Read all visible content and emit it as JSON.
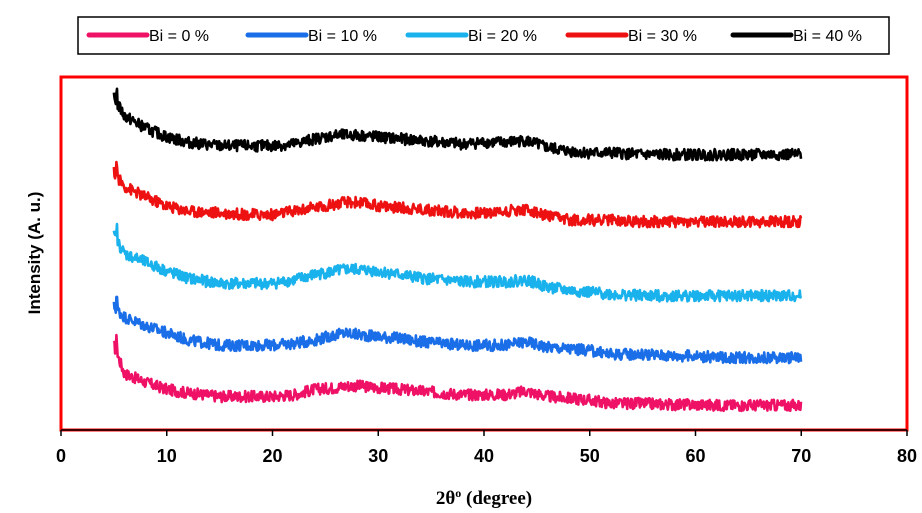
{
  "chart_data": {
    "type": "line",
    "title": "",
    "xlabel_main": "2θ",
    "xlabel_sup": "o",
    "xlabel_rest": " (degree)",
    "ylabel": "Intensity (A. u.)",
    "xlim": [
      0,
      80
    ],
    "ylim": [
      0,
      10
    ],
    "x_ticks": [
      "0",
      "10",
      "20",
      "30",
      "40",
      "50",
      "60",
      "70",
      "80"
    ],
    "y_ticks_shown": false,
    "legend_position": "top",
    "plot_border_color": "#ff0000",
    "x": [
      5,
      6,
      8,
      10,
      12,
      15,
      18,
      20,
      22,
      24,
      26,
      27,
      28,
      30,
      32,
      34,
      36,
      38,
      40,
      42,
      44,
      46,
      48,
      50,
      52,
      55,
      58,
      60,
      62,
      65,
      68,
      70
    ],
    "series": [
      {
        "name": "Bi = 0 %",
        "color": "#ee1166",
        "values": [
          2.4,
          1.6,
          1.35,
          1.15,
          1.05,
          0.95,
          0.95,
          0.95,
          1.0,
          1.15,
          1.2,
          1.25,
          1.25,
          1.2,
          1.15,
          1.1,
          1.05,
          1.0,
          1.0,
          1.0,
          1.1,
          0.95,
          0.9,
          0.85,
          0.75,
          0.75,
          0.72,
          0.72,
          0.7,
          0.7,
          0.7,
          0.7
        ]
      },
      {
        "name": "Bi = 10 %",
        "color": "#1a6ee8",
        "values": [
          3.5,
          3.2,
          2.95,
          2.75,
          2.55,
          2.4,
          2.4,
          2.4,
          2.45,
          2.55,
          2.7,
          2.75,
          2.7,
          2.65,
          2.6,
          2.5,
          2.45,
          2.4,
          2.4,
          2.4,
          2.5,
          2.35,
          2.3,
          2.25,
          2.15,
          2.15,
          2.1,
          2.1,
          2.05,
          2.05,
          2.05,
          2.05
        ]
      },
      {
        "name": "Bi = 20 %",
        "color": "#1ab2ec",
        "values": [
          5.5,
          5.0,
          4.75,
          4.5,
          4.3,
          4.15,
          4.15,
          4.15,
          4.25,
          4.4,
          4.5,
          4.55,
          4.55,
          4.5,
          4.4,
          4.3,
          4.25,
          4.2,
          4.2,
          4.2,
          4.25,
          4.05,
          3.95,
          3.9,
          3.85,
          3.8,
          3.8,
          3.8,
          3.8,
          3.8,
          3.8,
          3.8
        ]
      },
      {
        "name": "Bi = 30 %",
        "color": "#ee1111",
        "values": [
          7.3,
          6.9,
          6.6,
          6.35,
          6.2,
          6.15,
          6.1,
          6.1,
          6.2,
          6.3,
          6.4,
          6.45,
          6.45,
          6.35,
          6.3,
          6.25,
          6.2,
          6.15,
          6.15,
          6.2,
          6.25,
          6.05,
          5.95,
          5.95,
          5.95,
          5.9,
          5.9,
          5.9,
          5.9,
          5.9,
          5.9,
          5.9
        ]
      },
      {
        "name": "Bi = 40 %",
        "color": "#000000",
        "values": [
          9.4,
          8.9,
          8.55,
          8.3,
          8.15,
          8.05,
          8.05,
          8.05,
          8.1,
          8.25,
          8.35,
          8.35,
          8.35,
          8.3,
          8.25,
          8.2,
          8.15,
          8.1,
          8.15,
          8.15,
          8.2,
          8.0,
          7.9,
          7.85,
          7.85,
          7.8,
          7.8,
          7.8,
          7.8,
          7.8,
          7.8,
          7.8
        ]
      }
    ]
  }
}
